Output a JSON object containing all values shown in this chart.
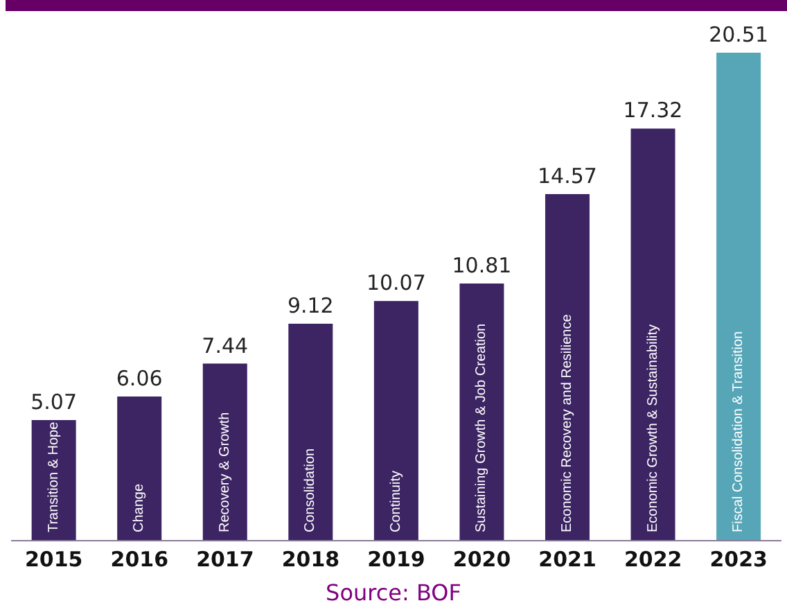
{
  "chart_data": {
    "type": "bar",
    "categories": [
      "2015",
      "2016",
      "2017",
      "2018",
      "2019",
      "2020",
      "2021",
      "2022",
      "2023"
    ],
    "values": [
      5.07,
      6.06,
      7.44,
      9.12,
      10.07,
      10.81,
      14.57,
      17.32,
      20.51
    ],
    "colors": [
      "#3d2463",
      "#3d2463",
      "#3d2463",
      "#3d2463",
      "#3d2463",
      "#3d2463",
      "#3d2463",
      "#3d2463",
      "#56a6b8"
    ],
    "data_labels": true,
    "grid": false,
    "legend": false,
    "tick_labels": "x",
    "annotations": [
      "Transition & Hope",
      "Change",
      "Recovery & Growth",
      "Consolidation",
      "Continuity",
      "Sustaining Growth & Job Creation",
      "Economic Recovery and Resilience",
      "Economic Growth & Sustainability",
      "Fiscal Consolidation & Transition",
      "Source: BOF"
    ]
  }
}
